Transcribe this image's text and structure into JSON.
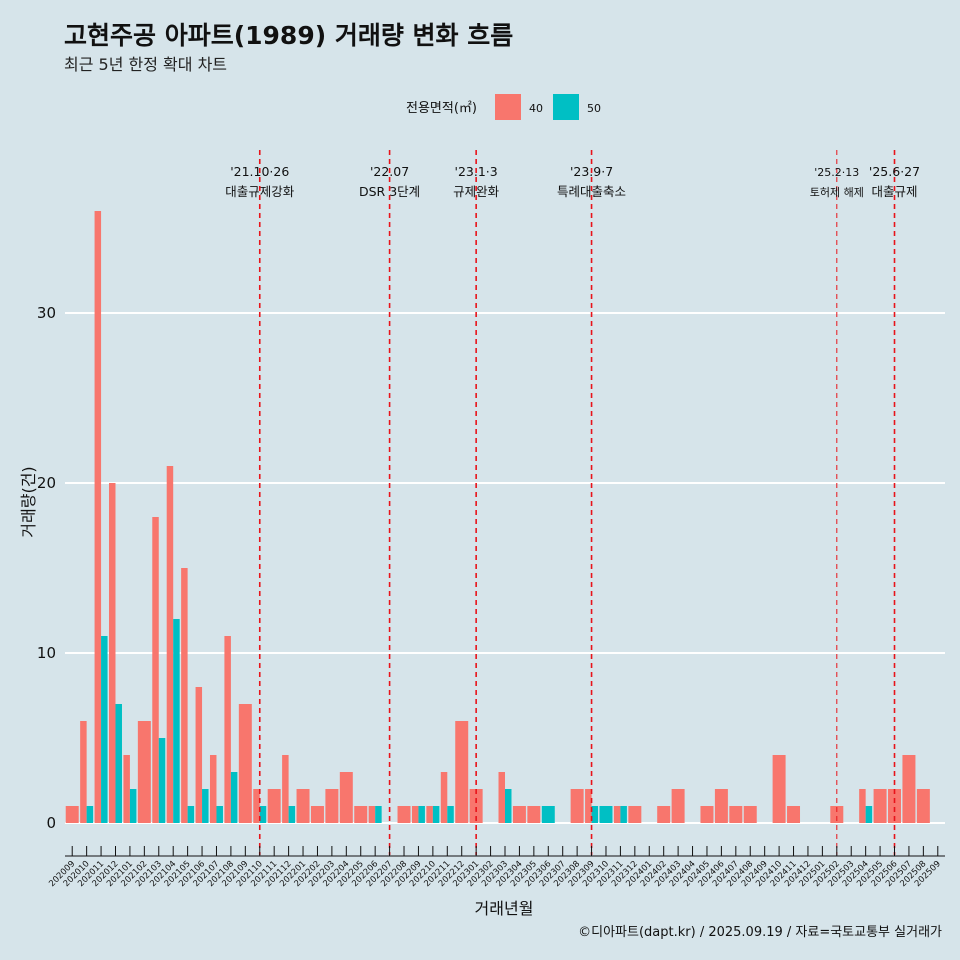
{
  "header": {
    "title": "고현주공 아파트(1989) 거래량 변화 흐름",
    "subtitle": "최근 5년 한정 확대 차트"
  },
  "legend": {
    "title": "전용면적(㎡)",
    "items": [
      {
        "label": "40",
        "color": "#f8766d"
      },
      {
        "label": "50",
        "color": "#00bfc4"
      }
    ]
  },
  "caption": "©디아파트(dapt.kr) / 2025.09.19 / 자료=국토교통부 실거래가",
  "chart_data": {
    "type": "bar",
    "xlabel": "거래년월",
    "ylabel": "거래량(건)",
    "ylim": [
      0,
      36
    ],
    "yticks": [
      0,
      10,
      20,
      30
    ],
    "grid": true,
    "legend_position": "top",
    "categories": [
      "202009",
      "202010",
      "202011",
      "202012",
      "202101",
      "202102",
      "202103",
      "202104",
      "202105",
      "202106",
      "202107",
      "202108",
      "202109",
      "202110",
      "202111",
      "202112",
      "202201",
      "202202",
      "202203",
      "202204",
      "202205",
      "202206",
      "202207",
      "202208",
      "202209",
      "202210",
      "202211",
      "202212",
      "202301",
      "202302",
      "202303",
      "202304",
      "202305",
      "202306",
      "202307",
      "202308",
      "202309",
      "202310",
      "202311",
      "202312",
      "202401",
      "202402",
      "202403",
      "202404",
      "202405",
      "202406",
      "202407",
      "202408",
      "202409",
      "202410",
      "202411",
      "202412",
      "202501",
      "202502",
      "202503",
      "202504",
      "202505",
      "202506",
      "202507",
      "202508",
      "202509"
    ],
    "series": [
      {
        "name": "40",
        "color": "#f8766d",
        "values": [
          1,
          6,
          36,
          20,
          4,
          6,
          18,
          21,
          15,
          8,
          4,
          11,
          7,
          2,
          2,
          4,
          2,
          1,
          2,
          3,
          1,
          1,
          0,
          1,
          1,
          1,
          3,
          6,
          2,
          0,
          3,
          1,
          1,
          0,
          0,
          2,
          2,
          0,
          1,
          1,
          0,
          1,
          2,
          0,
          1,
          2,
          1,
          1,
          0,
          4,
          1,
          0,
          0,
          1,
          0,
          2,
          2,
          2,
          4,
          2,
          0
        ]
      },
      {
        "name": "50",
        "color": "#00bfc4",
        "values": [
          0,
          1,
          11,
          7,
          2,
          0,
          5,
          12,
          1,
          2,
          1,
          3,
          0,
          1,
          0,
          1,
          0,
          0,
          0,
          0,
          0,
          1,
          0,
          0,
          1,
          1,
          1,
          0,
          0,
          0,
          2,
          0,
          0,
          1,
          0,
          0,
          1,
          1,
          1,
          0,
          0,
          0,
          0,
          0,
          0,
          0,
          0,
          0,
          0,
          0,
          0,
          0,
          0,
          0,
          0,
          1,
          0,
          0,
          0,
          0,
          0
        ]
      }
    ],
    "events": [
      {
        "category": "202110",
        "date": "'21.10·26",
        "label": "대출규제강화",
        "small": false
      },
      {
        "category": "202207",
        "date": "'22.07",
        "label": "DSR 3단계",
        "small": false
      },
      {
        "category": "202301",
        "date": "'23.1·3",
        "label": "규제완화",
        "small": false
      },
      {
        "category": "202309",
        "date": "'23.9·7",
        "label": "특례대출축소",
        "small": false
      },
      {
        "category": "202502",
        "date": "'25.2·13",
        "label": "토허제 해제",
        "small": true
      },
      {
        "category": "202506",
        "date": "'25.6·27",
        "label": "대출규제",
        "small": false
      }
    ]
  }
}
